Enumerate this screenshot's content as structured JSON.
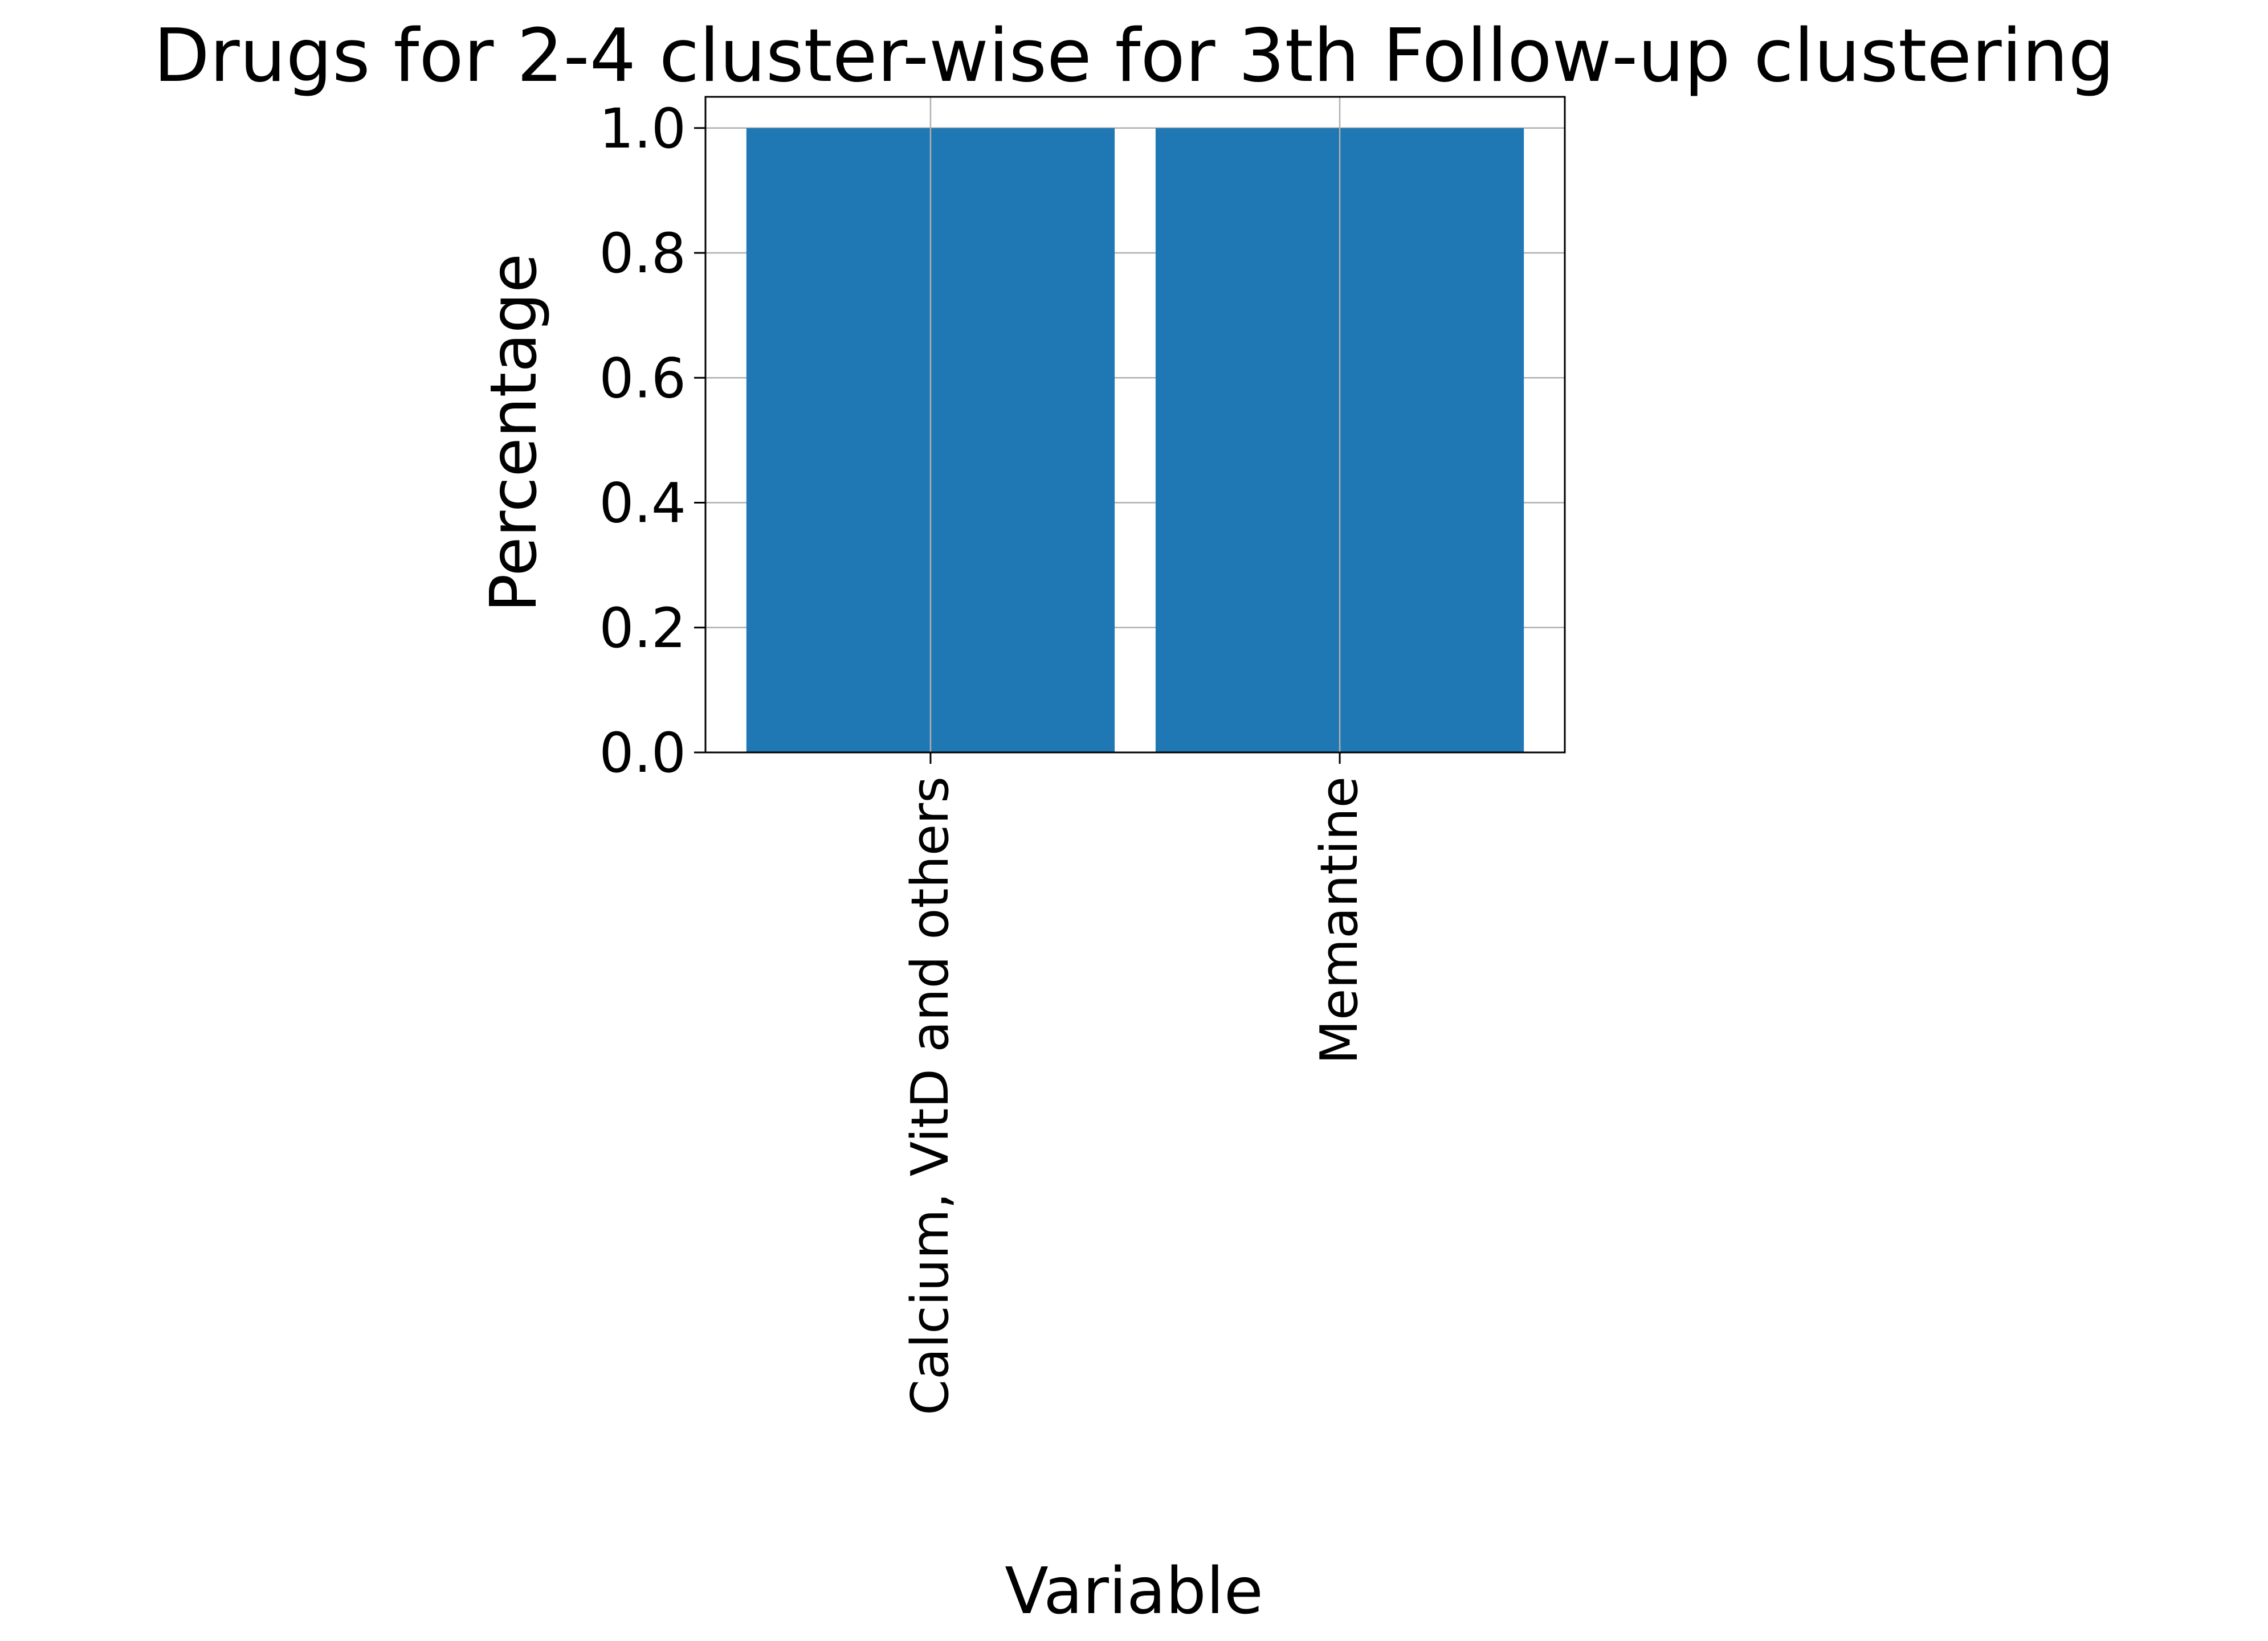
{
  "chart_data": {
    "type": "bar",
    "title": "Drugs for 2-4 cluster-wise for 3th Follow-up clustering",
    "xlabel": "Variable",
    "ylabel": "Percentage",
    "categories": [
      "Calcium, VitD and others",
      "Memantine"
    ],
    "values": [
      1.0,
      1.0
    ],
    "ylim": [
      0,
      1.05
    ],
    "yticks": [
      "0.0",
      "0.2",
      "0.4",
      "0.6",
      "0.8",
      "1.0"
    ],
    "grid": true,
    "bar_color": "#1f77b4",
    "grid_color": "#b0b0b0"
  }
}
